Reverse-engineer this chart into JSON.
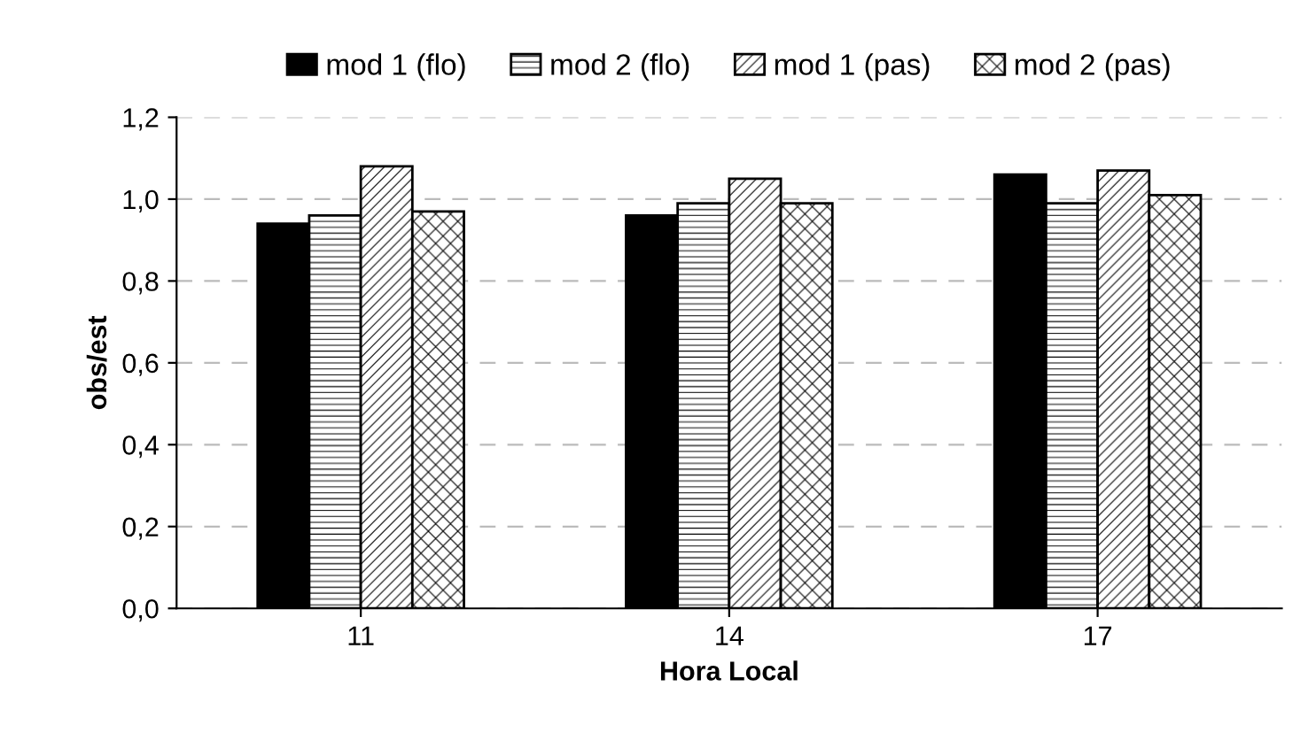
{
  "chart_data": {
    "type": "bar",
    "xlabel": "Hora Local",
    "ylabel": "obs/est",
    "categories": [
      "11",
      "14",
      "17"
    ],
    "series": [
      {
        "name": "mod 1 (flo)",
        "color": "#000000",
        "values": [
          0.94,
          0.96,
          1.06
        ]
      },
      {
        "name": "mod 2 (flo)",
        "color": "#000000",
        "values": [
          0.96,
          0.99,
          0.99
        ]
      },
      {
        "name": "mod 1 (pas)",
        "color": "#000000",
        "values": [
          1.08,
          1.05,
          1.07
        ]
      },
      {
        "name": "mod 2 (pas)",
        "color": "#000000",
        "values": [
          0.97,
          0.99,
          1.01
        ]
      }
    ],
    "ylim": [
      0,
      1.2
    ],
    "yticks": [
      {
        "value": 0,
        "label": "0,0"
      },
      {
        "value": 0.2,
        "label": "0,2"
      },
      {
        "value": 0.4,
        "label": "0,4"
      },
      {
        "value": 0.6,
        "label": "0,6"
      },
      {
        "value": 0.8,
        "label": "0,8"
      },
      {
        "value": 1.0,
        "label": "1,0"
      },
      {
        "value": 1.2,
        "label": "1,2"
      }
    ],
    "grid": "y",
    "legend": "top"
  }
}
